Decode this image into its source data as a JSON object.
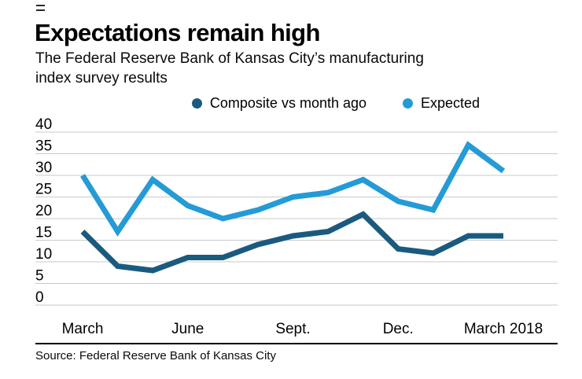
{
  "header": {
    "subtitle_line1": "The Federal Reserve Bank of Kansas City’s manufacturing",
    "subtitle_line2": "index survey results"
  },
  "chart_data": {
    "type": "line",
    "title": "Expectations remain high",
    "x_tick_labels": [
      {
        "index": 0,
        "label": "March"
      },
      {
        "index": 3,
        "label": "June"
      },
      {
        "index": 6,
        "label": "Sept."
      },
      {
        "index": 9,
        "label": "Dec."
      },
      {
        "index": 12,
        "label": "March 2018"
      }
    ],
    "series": [
      {
        "name": "Composite vs month ago",
        "color": "#1b5a7f",
        "values": [
          17,
          9,
          8,
          11,
          11,
          14,
          16,
          17,
          21,
          13,
          12,
          16,
          16
        ]
      },
      {
        "name": "Expected",
        "color": "#249bd6",
        "values": [
          30,
          17,
          29,
          23,
          20,
          22,
          25,
          26,
          29,
          24,
          22,
          37,
          31
        ]
      }
    ],
    "xlabel": "",
    "ylabel": "",
    "ylim": [
      0,
      40
    ],
    "yticks": [
      0,
      5,
      10,
      15,
      20,
      25,
      30,
      35,
      40
    ],
    "grid": true,
    "legend_position": "top",
    "source": "Source: Federal Reserve Bank of Kansas City"
  }
}
